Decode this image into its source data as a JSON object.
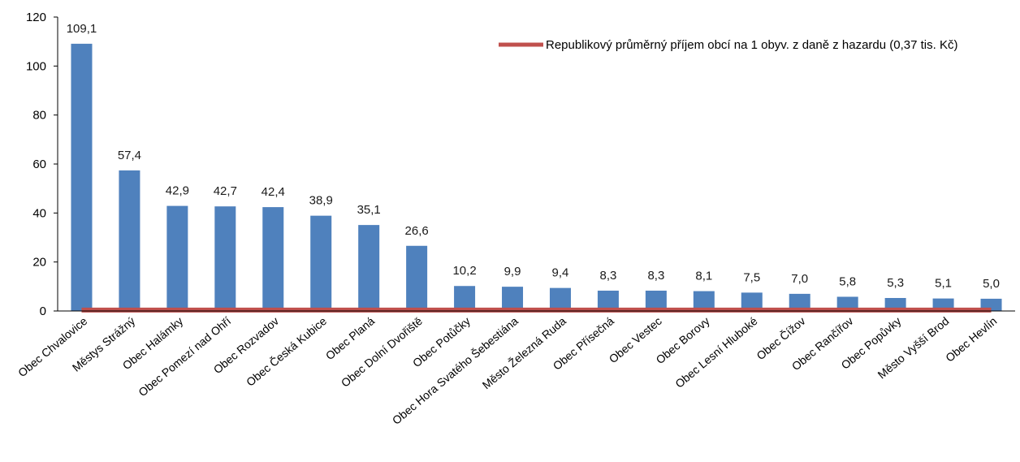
{
  "chart_data": {
    "type": "bar",
    "title": "",
    "xlabel": "",
    "ylabel": "",
    "ylim": [
      0,
      120
    ],
    "yticks": [
      0,
      20,
      40,
      60,
      80,
      100,
      120
    ],
    "grid": false,
    "legend_position": "top-right",
    "categories": [
      "Obec Chvalovice",
      "Městys Strážný",
      "Obec Halámky",
      "Obec Pomezí nad Ohří",
      "Obec Rozvadov",
      "Obec Česká Kubice",
      "Obec Planá",
      "Obec Dolní Dvořiště",
      "Obec Potůčky",
      "Obec Hora Svatého Šebestiána",
      "Město Železná Ruda",
      "Obec Přísečná",
      "Obec Vestec",
      "Obec Borovy",
      "Obec Lesní Hluboké",
      "Obec Čížov",
      "Obec Rančířov",
      "Obec Popůvky",
      "Město Vyšší Brod",
      "Obec Hevlín"
    ],
    "series": [
      {
        "type": "bar",
        "values": [
          109.1,
          57.4,
          42.9,
          42.7,
          42.4,
          38.9,
          35.1,
          26.6,
          10.2,
          9.9,
          9.4,
          8.3,
          8.3,
          8.1,
          7.5,
          7.0,
          5.8,
          5.3,
          5.1,
          5.0
        ],
        "labels": [
          "109,1",
          "57,4",
          "42,9",
          "42,7",
          "42,4",
          "38,9",
          "35,1",
          "26,6",
          "10,2",
          "9,9",
          "9,4",
          "8,3",
          "8,3",
          "8,1",
          "7,5",
          "7,0",
          "5,8",
          "5,3",
          "5,1",
          "5,0"
        ],
        "color": "#4f81bd"
      },
      {
        "type": "line",
        "name": "Republikový průměrný příjem obcí na 1 obyv. z daně z hazardu (0,37 tis. Kč)",
        "value": 0.37,
        "color": "#c0504d"
      }
    ]
  }
}
